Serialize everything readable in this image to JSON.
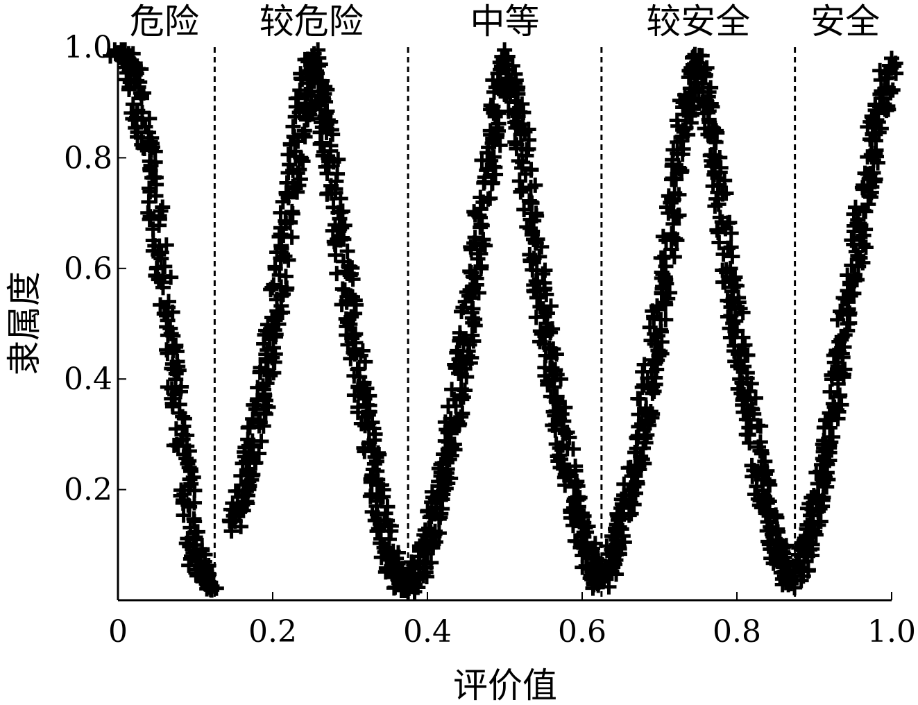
{
  "chart_data": {
    "type": "scatter",
    "title": "",
    "xlabel": "评价值",
    "ylabel": "隶属度",
    "xlim": [
      0,
      1.0
    ],
    "ylim": [
      0,
      1.0
    ],
    "grid": false,
    "marker": "plus",
    "color": "#000000",
    "x_ticks": [
      "0",
      "0.2",
      "0.4",
      "0.6",
      "0.8",
      "1.0"
    ],
    "y_ticks": [
      "0.2",
      "0.4",
      "0.6",
      "0.8",
      "1.0"
    ],
    "boundaries": [
      0.125,
      0.375,
      0.625,
      0.875
    ],
    "categories": [
      {
        "label": "危险",
        "x_center": 0.06
      },
      {
        "label": "较危险",
        "x_center": 0.25
      },
      {
        "label": "中等",
        "x_center": 0.5
      },
      {
        "label": "较安全",
        "x_center": 0.75
      },
      {
        "label": "安全",
        "x_center": 0.94
      }
    ],
    "series": [
      {
        "x": [
          0.0,
          0.02,
          0.04,
          0.06,
          0.08,
          0.1,
          0.12
        ],
        "y": [
          1.0,
          0.95,
          0.8,
          0.55,
          0.3,
          0.08,
          0.02
        ]
      },
      {
        "x": [
          0.15,
          0.17,
          0.19,
          0.21,
          0.23,
          0.25,
          0.27,
          0.29,
          0.31,
          0.33,
          0.35,
          0.37
        ],
        "y": [
          0.13,
          0.25,
          0.4,
          0.58,
          0.8,
          0.98,
          0.85,
          0.62,
          0.42,
          0.25,
          0.08,
          0.02
        ]
      },
      {
        "x": [
          0.38,
          0.4,
          0.42,
          0.44,
          0.46,
          0.48,
          0.5,
          0.52,
          0.54,
          0.56,
          0.58,
          0.6,
          0.62
        ],
        "y": [
          0.02,
          0.1,
          0.22,
          0.38,
          0.58,
          0.8,
          0.98,
          0.85,
          0.62,
          0.42,
          0.25,
          0.12,
          0.03
        ]
      },
      {
        "x": [
          0.63,
          0.65,
          0.67,
          0.69,
          0.71,
          0.73,
          0.75,
          0.77,
          0.79,
          0.81,
          0.83,
          0.85,
          0.87
        ],
        "y": [
          0.03,
          0.12,
          0.25,
          0.42,
          0.62,
          0.85,
          0.98,
          0.82,
          0.58,
          0.4,
          0.22,
          0.1,
          0.03
        ]
      },
      {
        "x": [
          0.88,
          0.9,
          0.92,
          0.94,
          0.96,
          0.98,
          1.0
        ],
        "y": [
          0.05,
          0.15,
          0.3,
          0.5,
          0.68,
          0.85,
          0.98
        ]
      }
    ]
  }
}
